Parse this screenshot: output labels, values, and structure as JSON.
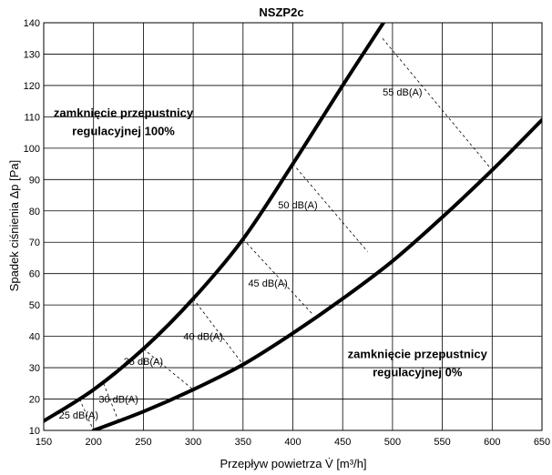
{
  "chart_data": {
    "type": "line",
    "title": "NSZP2c",
    "xlabel": "Przepływ powietrza V̇ [m³/h]",
    "ylabel": "Spadek ciśnienia Δp [Pa]",
    "xlim": [
      150,
      650
    ],
    "ylim": [
      10,
      140
    ],
    "x_ticks": [
      150,
      200,
      250,
      300,
      350,
      400,
      450,
      500,
      550,
      600,
      650
    ],
    "y_ticks": [
      10,
      20,
      30,
      40,
      50,
      60,
      70,
      80,
      90,
      100,
      110,
      120,
      130,
      140
    ],
    "grid": true,
    "series": [
      {
        "name": "",
        "x": [
          150,
          200,
          250,
          300,
          350,
          400,
          450,
          495
        ],
        "y": [
          13,
          23,
          36,
          52,
          71,
          95,
          120,
          142
        ]
      },
      {
        "name": "",
        "x": [
          200,
          250,
          300,
          350,
          400,
          450,
          500,
          550,
          600,
          650
        ],
        "y": [
          10,
          16,
          23,
          31,
          41,
          52,
          64,
          78,
          93,
          109
        ]
      }
    ],
    "db_lines": [
      {
        "label": "25 dB(A)",
        "from": [
          186,
          20
        ],
        "to": [
          200,
          10
        ],
        "label_pos": [
          185,
          15
        ]
      },
      {
        "label": "30 dB(A)",
        "from": [
          210,
          25
        ],
        "to": [
          225,
          13
        ],
        "label_pos": [
          225,
          20
        ]
      },
      {
        "label": "35 dB(A)",
        "from": [
          250,
          36
        ],
        "to": [
          300,
          23
        ],
        "label_pos": [
          250,
          32
        ]
      },
      {
        "label": "40 dB(A)",
        "from": [
          300,
          52
        ],
        "to": [
          350,
          31
        ],
        "label_pos": [
          310,
          40
        ]
      },
      {
        "label": "45 dB(A)",
        "from": [
          350,
          71
        ],
        "to": [
          420,
          47
        ],
        "label_pos": [
          375,
          57
        ]
      },
      {
        "label": "50 dB(A)",
        "from": [
          400,
          95
        ],
        "to": [
          475,
          67
        ],
        "label_pos": [
          405,
          82
        ]
      },
      {
        "label": "55 dB(A)",
        "from": [
          490,
          135
        ],
        "to": [
          600,
          93
        ],
        "label_pos": [
          510,
          118
        ]
      }
    ],
    "annotations": [
      {
        "lines": [
          "zamknięcie przepustnicy",
          "regulacyjnej 100%"
        ],
        "pos": [
          230,
          110
        ]
      },
      {
        "lines": [
          "zamknięcie przepustnicy",
          "regulacyjnej 0%"
        ],
        "pos": [
          525,
          33
        ]
      }
    ]
  }
}
